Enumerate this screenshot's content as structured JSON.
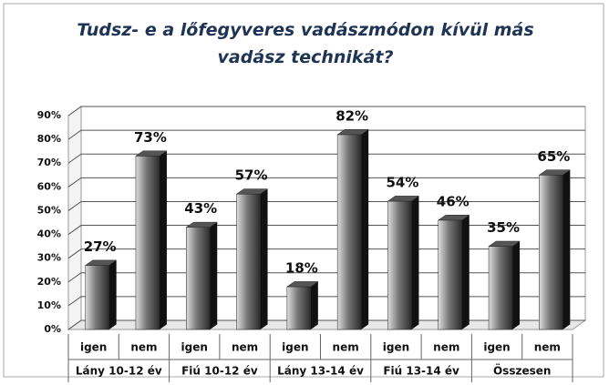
{
  "chart_data": {
    "type": "bar3d",
    "title": "Tudsz- e a lőfegyveres vadászmódon kívül más vadász technikát?",
    "categories": [
      "igen",
      "nem",
      "igen",
      "nem",
      "igen",
      "nem",
      "igen",
      "nem",
      "igen",
      "nem"
    ],
    "groups": [
      "Lány 10-12 év",
      "Fiú 10-12 év",
      "Lány 13-14 év",
      "Fiú 13-14 év",
      "Összesen"
    ],
    "values": [
      27,
      73,
      43,
      57,
      18,
      82,
      54,
      46,
      35,
      65
    ],
    "value_labels": [
      "27%",
      "73%",
      "43%",
      "57%",
      "18%",
      "82%",
      "54%",
      "46%",
      "35%",
      "65%"
    ],
    "color": "#2b2b2b",
    "ylim": [
      0,
      90
    ],
    "yticks": [
      {
        "value": 0,
        "label": "0%"
      },
      {
        "value": 10,
        "label": "10%"
      },
      {
        "value": 20,
        "label": "20%"
      },
      {
        "value": 30,
        "label": "30%"
      },
      {
        "value": 40,
        "label": "40%"
      },
      {
        "value": 50,
        "label": "50%"
      },
      {
        "value": 60,
        "label": "60%"
      },
      {
        "value": 70,
        "label": "70%"
      },
      {
        "value": 80,
        "label": "80%"
      },
      {
        "value": 90,
        "label": "90%"
      }
    ],
    "grid": true
  }
}
